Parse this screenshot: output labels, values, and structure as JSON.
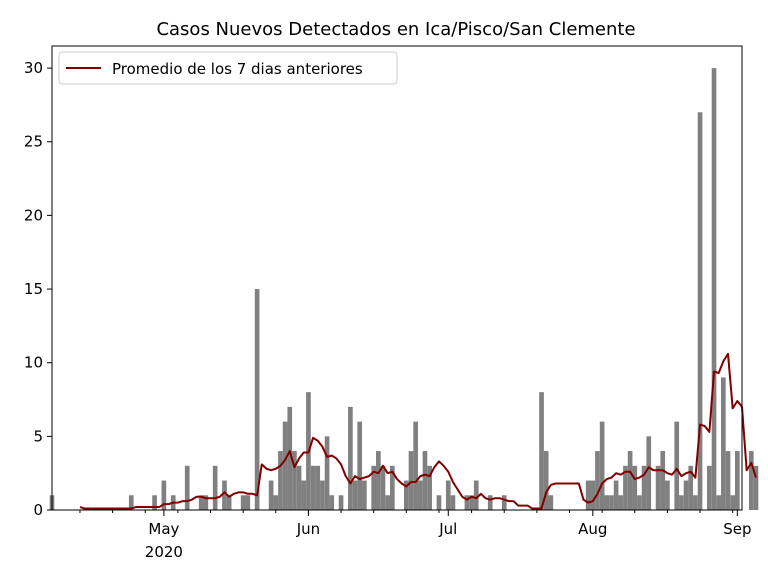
{
  "chart_data": {
    "type": "bar",
    "title": "Casos Nuevos Detectados en Ica/Pisco/San Clemente",
    "xlabel": "",
    "ylabel": "",
    "x_start": "2020-04-07",
    "xlim": [
      "2020-04-07",
      "2020-09-02"
    ],
    "ylim": [
      0,
      31.5
    ],
    "yticks": [
      0,
      5,
      10,
      15,
      20,
      25,
      30
    ],
    "xticks": [
      {
        "date": "2020-05-01",
        "label": "May",
        "sublabel": "2020"
      },
      {
        "date": "2020-06-01",
        "label": "Jun",
        "sublabel": ""
      },
      {
        "date": "2020-07-01",
        "label": "Jul",
        "sublabel": ""
      },
      {
        "date": "2020-08-01",
        "label": "Aug",
        "sublabel": ""
      },
      {
        "date": "2020-09-01",
        "label": "Sep",
        "sublabel": ""
      }
    ],
    "grid": false,
    "legend_position": "upper-left",
    "colors": {
      "bars": "#808080",
      "line": "#800000"
    },
    "series": [
      {
        "type": "bar",
        "values": [
          1,
          0,
          0,
          0,
          0,
          0,
          0,
          0,
          0,
          0,
          0,
          0,
          0,
          0,
          0,
          0,
          0,
          1,
          0,
          0,
          0,
          0,
          1,
          0,
          2,
          0,
          1,
          0,
          0,
          3,
          0,
          0,
          1,
          1,
          0,
          3,
          0,
          2,
          1,
          0,
          0,
          1,
          1,
          0,
          15,
          0,
          0,
          2,
          1,
          4,
          6,
          7,
          4,
          3,
          2,
          8,
          3,
          3,
          2,
          5,
          1,
          0,
          1,
          0,
          7,
          2,
          6,
          2,
          0,
          3,
          4,
          3,
          1,
          3,
          0,
          0,
          2,
          4,
          6,
          2,
          4,
          3,
          0,
          1,
          0,
          2,
          1,
          0,
          0,
          1,
          1,
          2,
          0,
          0,
          1,
          0,
          0,
          1,
          0,
          0,
          0,
          0,
          0,
          0,
          0,
          8,
          4,
          1,
          0,
          0,
          0,
          0,
          0,
          0,
          0,
          2,
          2,
          4,
          6,
          1,
          1,
          2,
          1,
          3,
          4,
          3,
          1,
          3,
          5,
          0,
          3,
          4,
          2,
          0,
          6,
          1,
          2,
          3,
          1,
          27,
          0,
          3,
          30,
          1,
          9,
          4,
          1,
          4,
          0,
          0,
          4,
          3
        ]
      },
      {
        "type": "line",
        "name": "Promedio de los 7 dias anteriores",
        "values": [
          null,
          null,
          null,
          null,
          null,
          null,
          0.2,
          0.1,
          0.1,
          0.1,
          0.1,
          0.1,
          0.1,
          0.1,
          0.1,
          0.1,
          0.1,
          0.1,
          0.2,
          0.2,
          0.2,
          0.2,
          0.2,
          0.2,
          0.4,
          0.4,
          0.5,
          0.5,
          0.6,
          0.6,
          0.7,
          0.9,
          0.9,
          0.8,
          0.8,
          0.8,
          0.9,
          1.2,
          0.9,
          1.1,
          1.2,
          1.2,
          1.1,
          1.1,
          1.0,
          3.1,
          2.8,
          2.7,
          2.8,
          3.0,
          3.4,
          4.0,
          2.9,
          3.5,
          3.9,
          3.9,
          4.9,
          4.7,
          4.3,
          3.6,
          3.7,
          3.5,
          3.1,
          2.3,
          1.8,
          2.3,
          2.1,
          2.2,
          2.3,
          2.6,
          2.5,
          3.0,
          2.5,
          2.6,
          2.1,
          1.8,
          1.6,
          1.9,
          1.9,
          2.3,
          2.4,
          2.3,
          2.9,
          3.3,
          3.0,
          2.6,
          1.9,
          1.4,
          0.9,
          0.7,
          0.9,
          0.8,
          1.1,
          0.8,
          0.7,
          0.8,
          0.8,
          0.7,
          0.6,
          0.6,
          0.3,
          0.3,
          0.3,
          0.1,
          0.1,
          0.1,
          1.2,
          1.7,
          1.8,
          1.8,
          1.8,
          1.8,
          1.8,
          1.8,
          0.7,
          0.5,
          0.6,
          1.1,
          1.8,
          2.1,
          2.2,
          2.5,
          2.4,
          2.6,
          2.6,
          2.1,
          2.2,
          2.4,
          2.9,
          2.7,
          2.7,
          2.7,
          2.5,
          2.4,
          2.8,
          2.3,
          2.5,
          2.6,
          2.2,
          5.8,
          5.7,
          5.3,
          9.4,
          9.3,
          10.1,
          10.6,
          6.9,
          7.4,
          7.0,
          2.7,
          3.2,
          2.2
        ]
      }
    ]
  }
}
